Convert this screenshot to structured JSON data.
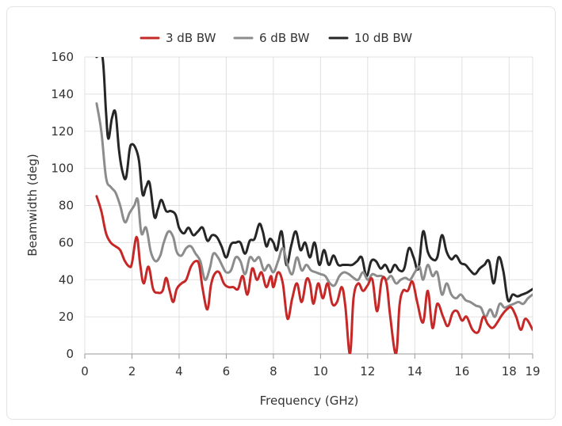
{
  "chart_data": {
    "type": "line",
    "title": "",
    "xlabel": "Frequency (GHz)",
    "ylabel": "Beamwidth (deg)",
    "xlim": [
      0,
      19
    ],
    "ylim": [
      0,
      160
    ],
    "x_ticks": [
      0,
      2,
      4,
      6,
      8,
      10,
      12,
      14,
      16,
      18,
      19
    ],
    "y_ticks": [
      0,
      20,
      40,
      60,
      80,
      100,
      120,
      140,
      160
    ],
    "grid": true,
    "legend_position": "top-center",
    "series": [
      {
        "name": "3 dB BW",
        "color": "#c62828",
        "points": [
          [
            0.5,
            85
          ],
          [
            0.7,
            77
          ],
          [
            0.9,
            65
          ],
          [
            1.1,
            60
          ],
          [
            1.3,
            58
          ],
          [
            1.5,
            56
          ],
          [
            1.7,
            50
          ],
          [
            1.9,
            47
          ],
          [
            2.0,
            49
          ],
          [
            2.2,
            63
          ],
          [
            2.35,
            48
          ],
          [
            2.5,
            38
          ],
          [
            2.7,
            47
          ],
          [
            2.9,
            35
          ],
          [
            3.1,
            33
          ],
          [
            3.3,
            34
          ],
          [
            3.45,
            41
          ],
          [
            3.6,
            34
          ],
          [
            3.75,
            28
          ],
          [
            3.9,
            35
          ],
          [
            4.1,
            38
          ],
          [
            4.3,
            40
          ],
          [
            4.5,
            47
          ],
          [
            4.7,
            50
          ],
          [
            4.85,
            48
          ],
          [
            5.0,
            35
          ],
          [
            5.2,
            24
          ],
          [
            5.35,
            37
          ],
          [
            5.5,
            43
          ],
          [
            5.7,
            44
          ],
          [
            5.9,
            38
          ],
          [
            6.1,
            36
          ],
          [
            6.3,
            36
          ],
          [
            6.5,
            35
          ],
          [
            6.7,
            42
          ],
          [
            6.9,
            32
          ],
          [
            7.1,
            46
          ],
          [
            7.3,
            40
          ],
          [
            7.5,
            44
          ],
          [
            7.7,
            36
          ],
          [
            7.9,
            42
          ],
          [
            8.0,
            36
          ],
          [
            8.2,
            44
          ],
          [
            8.4,
            38
          ],
          [
            8.6,
            19
          ],
          [
            8.8,
            30
          ],
          [
            9.0,
            38
          ],
          [
            9.2,
            28
          ],
          [
            9.4,
            40
          ],
          [
            9.55,
            38
          ],
          [
            9.7,
            27
          ],
          [
            9.9,
            38
          ],
          [
            10.1,
            30
          ],
          [
            10.3,
            38
          ],
          [
            10.5,
            27
          ],
          [
            10.7,
            28
          ],
          [
            10.9,
            36
          ],
          [
            11.05,
            26
          ],
          [
            11.25,
            0
          ],
          [
            11.4,
            30
          ],
          [
            11.6,
            38
          ],
          [
            11.8,
            34
          ],
          [
            12.0,
            37
          ],
          [
            12.2,
            40
          ],
          [
            12.4,
            23
          ],
          [
            12.6,
            40
          ],
          [
            12.8,
            38
          ],
          [
            12.95,
            21
          ],
          [
            13.2,
            0
          ],
          [
            13.35,
            26
          ],
          [
            13.5,
            34
          ],
          [
            13.7,
            34
          ],
          [
            13.9,
            39
          ],
          [
            14.1,
            28
          ],
          [
            14.35,
            17
          ],
          [
            14.55,
            34
          ],
          [
            14.75,
            14
          ],
          [
            14.95,
            27
          ],
          [
            15.2,
            20
          ],
          [
            15.4,
            15
          ],
          [
            15.6,
            22
          ],
          [
            15.8,
            23
          ],
          [
            16.0,
            18
          ],
          [
            16.2,
            20
          ],
          [
            16.45,
            13
          ],
          [
            16.7,
            12
          ],
          [
            16.9,
            20
          ],
          [
            17.1,
            16
          ],
          [
            17.3,
            14
          ],
          [
            17.5,
            17
          ],
          [
            17.7,
            21
          ],
          [
            17.9,
            24
          ],
          [
            18.1,
            25
          ],
          [
            18.3,
            20
          ],
          [
            18.5,
            13
          ],
          [
            18.7,
            19
          ],
          [
            19.0,
            13
          ]
        ]
      },
      {
        "name": "6 dB BW",
        "color": "#8c8c8c",
        "points": [
          [
            0.5,
            135
          ],
          [
            0.7,
            120
          ],
          [
            0.9,
            95
          ],
          [
            1.1,
            90
          ],
          [
            1.3,
            87
          ],
          [
            1.5,
            80
          ],
          [
            1.7,
            71
          ],
          [
            1.9,
            76
          ],
          [
            2.1,
            80
          ],
          [
            2.25,
            83
          ],
          [
            2.4,
            65
          ],
          [
            2.6,
            68
          ],
          [
            2.8,
            55
          ],
          [
            3.0,
            50
          ],
          [
            3.2,
            53
          ],
          [
            3.35,
            60
          ],
          [
            3.55,
            66
          ],
          [
            3.75,
            63
          ],
          [
            3.9,
            55
          ],
          [
            4.1,
            53
          ],
          [
            4.3,
            57
          ],
          [
            4.5,
            58
          ],
          [
            4.7,
            54
          ],
          [
            4.9,
            50
          ],
          [
            5.1,
            40
          ],
          [
            5.3,
            46
          ],
          [
            5.45,
            54
          ],
          [
            5.65,
            52
          ],
          [
            5.85,
            47
          ],
          [
            6.0,
            44
          ],
          [
            6.2,
            45
          ],
          [
            6.4,
            52
          ],
          [
            6.6,
            50
          ],
          [
            6.8,
            43
          ],
          [
            7.0,
            52
          ],
          [
            7.2,
            50
          ],
          [
            7.4,
            52
          ],
          [
            7.6,
            45
          ],
          [
            7.8,
            48
          ],
          [
            8.0,
            44
          ],
          [
            8.2,
            50
          ],
          [
            8.4,
            57
          ],
          [
            8.6,
            48
          ],
          [
            8.8,
            43
          ],
          [
            9.0,
            52
          ],
          [
            9.2,
            45
          ],
          [
            9.4,
            48
          ],
          [
            9.6,
            45
          ],
          [
            9.8,
            44
          ],
          [
            10.0,
            43
          ],
          [
            10.2,
            42
          ],
          [
            10.4,
            38
          ],
          [
            10.6,
            37
          ],
          [
            10.8,
            42
          ],
          [
            11.0,
            44
          ],
          [
            11.2,
            43
          ],
          [
            11.4,
            41
          ],
          [
            11.6,
            40
          ],
          [
            11.8,
            44
          ],
          [
            12.0,
            40
          ],
          [
            12.2,
            43
          ],
          [
            12.4,
            42
          ],
          [
            12.6,
            42
          ],
          [
            12.8,
            40
          ],
          [
            13.0,
            42
          ],
          [
            13.2,
            38
          ],
          [
            13.4,
            40
          ],
          [
            13.6,
            41
          ],
          [
            13.8,
            40
          ],
          [
            14.0,
            44
          ],
          [
            14.2,
            47
          ],
          [
            14.35,
            40
          ],
          [
            14.55,
            48
          ],
          [
            14.75,
            42
          ],
          [
            14.95,
            44
          ],
          [
            15.15,
            32
          ],
          [
            15.35,
            38
          ],
          [
            15.55,
            32
          ],
          [
            15.75,
            30
          ],
          [
            15.95,
            32
          ],
          [
            16.15,
            29
          ],
          [
            16.35,
            28
          ],
          [
            16.6,
            26
          ],
          [
            16.8,
            25
          ],
          [
            17.0,
            20
          ],
          [
            17.2,
            24
          ],
          [
            17.4,
            20
          ],
          [
            17.6,
            27
          ],
          [
            17.8,
            25
          ],
          [
            18.0,
            26
          ],
          [
            18.2,
            27
          ],
          [
            18.4,
            28
          ],
          [
            18.6,
            27
          ],
          [
            18.8,
            30
          ],
          [
            19.0,
            32
          ]
        ]
      },
      {
        "name": "10 dB BW",
        "color": "#262626",
        "points": [
          [
            0.5,
            160
          ],
          [
            0.75,
            160
          ],
          [
            0.9,
            130
          ],
          [
            1.0,
            116
          ],
          [
            1.15,
            127
          ],
          [
            1.3,
            130
          ],
          [
            1.45,
            110
          ],
          [
            1.6,
            98
          ],
          [
            1.75,
            95
          ],
          [
            1.9,
            110
          ],
          [
            2.0,
            113
          ],
          [
            2.15,
            111
          ],
          [
            2.3,
            104
          ],
          [
            2.45,
            86
          ],
          [
            2.6,
            90
          ],
          [
            2.75,
            92
          ],
          [
            2.95,
            74
          ],
          [
            3.1,
            78
          ],
          [
            3.25,
            83
          ],
          [
            3.45,
            77
          ],
          [
            3.65,
            77
          ],
          [
            3.85,
            75
          ],
          [
            4.0,
            68
          ],
          [
            4.2,
            65
          ],
          [
            4.4,
            68
          ],
          [
            4.6,
            64
          ],
          [
            4.8,
            66
          ],
          [
            5.0,
            68
          ],
          [
            5.2,
            61
          ],
          [
            5.4,
            64
          ],
          [
            5.6,
            63
          ],
          [
            5.8,
            58
          ],
          [
            6.0,
            52
          ],
          [
            6.2,
            59
          ],
          [
            6.4,
            60
          ],
          [
            6.6,
            60
          ],
          [
            6.8,
            54
          ],
          [
            7.0,
            61
          ],
          [
            7.2,
            62
          ],
          [
            7.4,
            70
          ],
          [
            7.55,
            66
          ],
          [
            7.7,
            58
          ],
          [
            7.85,
            62
          ],
          [
            8.0,
            60
          ],
          [
            8.15,
            56
          ],
          [
            8.35,
            66
          ],
          [
            8.55,
            48
          ],
          [
            8.75,
            58
          ],
          [
            8.95,
            66
          ],
          [
            9.15,
            56
          ],
          [
            9.35,
            60
          ],
          [
            9.55,
            52
          ],
          [
            9.75,
            60
          ],
          [
            9.95,
            48
          ],
          [
            10.15,
            56
          ],
          [
            10.35,
            48
          ],
          [
            10.55,
            53
          ],
          [
            10.75,
            48
          ],
          [
            10.95,
            48
          ],
          [
            11.15,
            48
          ],
          [
            11.35,
            48
          ],
          [
            11.55,
            50
          ],
          [
            11.75,
            52
          ],
          [
            11.95,
            42
          ],
          [
            12.15,
            50
          ],
          [
            12.35,
            50
          ],
          [
            12.55,
            46
          ],
          [
            12.75,
            48
          ],
          [
            12.95,
            44
          ],
          [
            13.15,
            48
          ],
          [
            13.35,
            45
          ],
          [
            13.55,
            46
          ],
          [
            13.75,
            57
          ],
          [
            13.95,
            52
          ],
          [
            14.15,
            46
          ],
          [
            14.35,
            66
          ],
          [
            14.55,
            55
          ],
          [
            14.75,
            51
          ],
          [
            14.95,
            52
          ],
          [
            15.15,
            64
          ],
          [
            15.35,
            55
          ],
          [
            15.55,
            51
          ],
          [
            15.75,
            53
          ],
          [
            15.95,
            49
          ],
          [
            16.15,
            48
          ],
          [
            16.35,
            45
          ],
          [
            16.55,
            43
          ],
          [
            16.75,
            46
          ],
          [
            16.95,
            48
          ],
          [
            17.15,
            50
          ],
          [
            17.35,
            38
          ],
          [
            17.55,
            52
          ],
          [
            17.75,
            45
          ],
          [
            17.95,
            29
          ],
          [
            18.15,
            32
          ],
          [
            18.35,
            31
          ],
          [
            18.55,
            32
          ],
          [
            18.75,
            33
          ],
          [
            19.0,
            35
          ]
        ]
      }
    ]
  }
}
